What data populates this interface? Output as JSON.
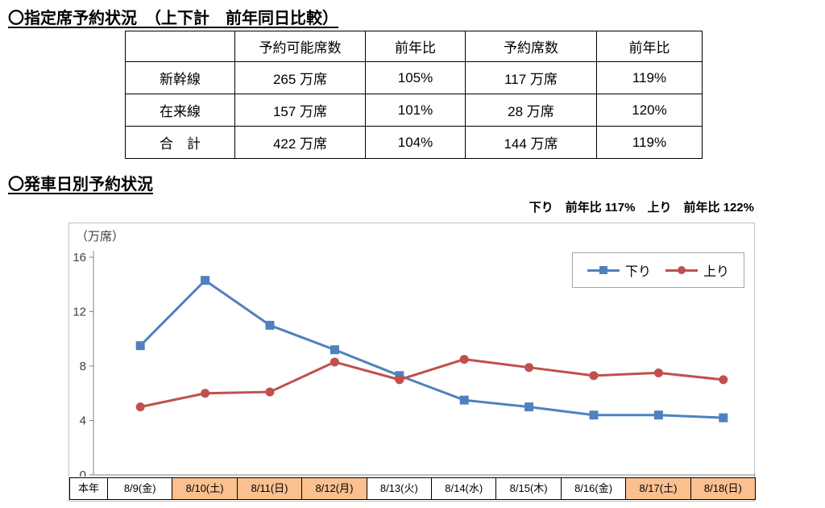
{
  "page": {
    "title1": "〇指定席予約状況　（上下計　前年同日比較）",
    "title2": "〇発車日別予約状況",
    "ratio_note": "下り　前年比 117%　上り　前年比 122%"
  },
  "table": {
    "headers": [
      "",
      "予約可能席数",
      "前年比",
      "予約席数",
      "前年比"
    ],
    "rows": [
      {
        "label": "新幹線",
        "cells": [
          "265 万席",
          "105%",
          "117 万席",
          "119%"
        ]
      },
      {
        "label": "在来線",
        "cells": [
          "157 万席",
          "101%",
          "28 万席",
          "120%"
        ]
      },
      {
        "label": "合　計",
        "cells": [
          "422 万席",
          "104%",
          "144 万席",
          "119%"
        ]
      }
    ]
  },
  "chart_data": {
    "type": "line",
    "unit_label": "（万席）",
    "row_label": "本年",
    "categories": [
      "8/9(金)",
      "8/10(土)",
      "8/11(日)",
      "8/12(月)",
      "8/13(火)",
      "8/14(水)",
      "8/15(木)",
      "8/16(金)",
      "8/17(土)",
      "8/18(日)"
    ],
    "highlighted_categories": [
      1,
      2,
      3,
      8,
      9
    ],
    "series": [
      {
        "name": "下り",
        "color": "#4F81BD",
        "marker": "square",
        "values": [
          9.5,
          14.3,
          11.0,
          9.2,
          7.3,
          5.5,
          5.0,
          4.4,
          4.4,
          4.2
        ]
      },
      {
        "name": "上り",
        "color": "#C0504D",
        "marker": "circle",
        "values": [
          5.0,
          6.0,
          6.1,
          8.3,
          7.0,
          8.5,
          7.9,
          7.3,
          7.5,
          7.0
        ]
      }
    ],
    "ylim": [
      0,
      16
    ],
    "yticks": [
      0,
      4,
      8,
      12,
      16
    ],
    "legend_position": "top-right",
    "grid": false,
    "highlight_color": "#FAC090",
    "axis_color": "#808080"
  }
}
